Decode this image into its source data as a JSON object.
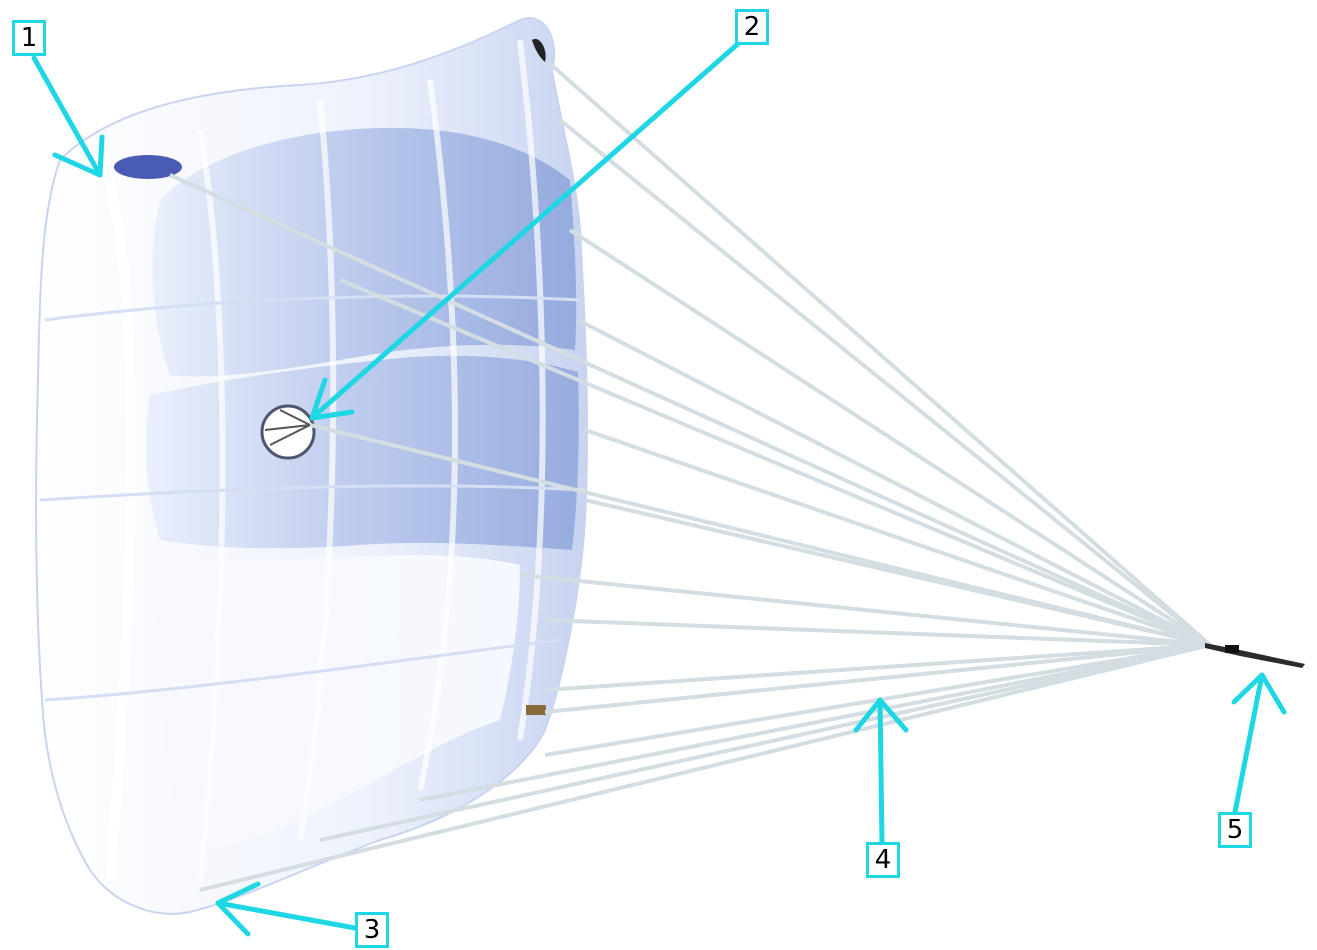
{
  "labels": {
    "one": "1",
    "two": "2",
    "three": "3",
    "four": "4",
    "five": "5"
  },
  "colors": {
    "callout": "#1fd6e4",
    "canopy_light": "#f4f7fd",
    "canopy_shade": "#a9bbe6",
    "canopy_deep": "#7f98d6",
    "lines": "#d3dde2",
    "vent": "#2b3ea8"
  }
}
